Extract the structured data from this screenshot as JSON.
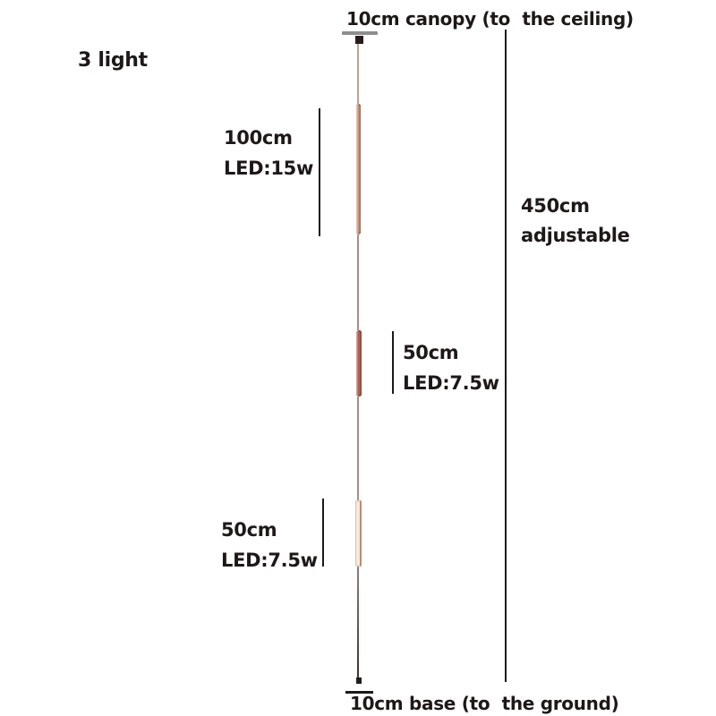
{
  "diagram": {
    "canopy_label": "10cm canopy (to  the ceiling)",
    "variant_label": "3 light",
    "base_label": "10cm base (to  the ground)",
    "overall": {
      "length": "450cm",
      "note": "adjustable"
    },
    "segments": [
      {
        "position": "top",
        "length": "100cm",
        "power": "LED:15w"
      },
      {
        "position": "middle",
        "length": "50cm",
        "power": "LED:7.5w"
      },
      {
        "position": "bottom",
        "length": "50cm",
        "power": "LED:7.5w"
      }
    ]
  },
  "colors": {
    "text": "#1f1818",
    "dimension_line": "#1a1a1a",
    "canopy_bar": "#8e8e8e",
    "connector": "#241d1f",
    "cable_top": "#c69e8b",
    "cable_mid": "#ab8d83",
    "cable_bottom": "#6b5348",
    "tube_100cm": "#c9937a",
    "tube_50cm_middle": "#b06050",
    "tube_50cm_bottom_lit": "#f3ebdc"
  }
}
